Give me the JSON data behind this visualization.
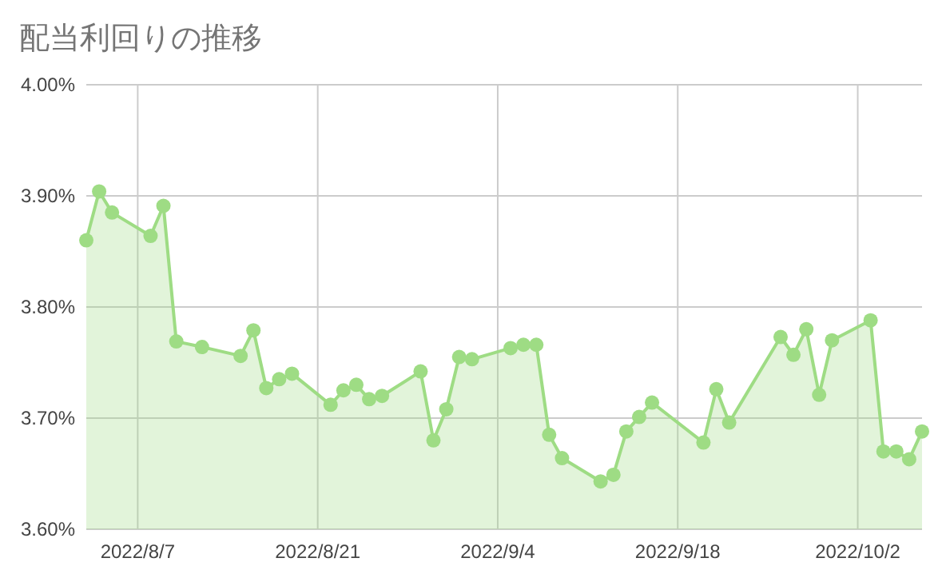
{
  "chart_data": {
    "type": "area",
    "title": "配当利回りの推移",
    "x": [
      "2022-08-03",
      "2022-08-04",
      "2022-08-05",
      "2022-08-08",
      "2022-08-09",
      "2022-08-10",
      "2022-08-12",
      "2022-08-15",
      "2022-08-16",
      "2022-08-17",
      "2022-08-18",
      "2022-08-19",
      "2022-08-22",
      "2022-08-23",
      "2022-08-24",
      "2022-08-25",
      "2022-08-26",
      "2022-08-29",
      "2022-08-30",
      "2022-08-31",
      "2022-09-01",
      "2022-09-02",
      "2022-09-05",
      "2022-09-06",
      "2022-09-07",
      "2022-09-08",
      "2022-09-09",
      "2022-09-12",
      "2022-09-13",
      "2022-09-14",
      "2022-09-15",
      "2022-09-16",
      "2022-09-20",
      "2022-09-21",
      "2022-09-22",
      "2022-09-26",
      "2022-09-27",
      "2022-09-28",
      "2022-09-29",
      "2022-09-30",
      "2022-10-03",
      "2022-10-04",
      "2022-10-05",
      "2022-10-06",
      "2022-10-07"
    ],
    "series": [
      {
        "color": "#9edc84",
        "values": [
          3.86,
          3.904,
          3.885,
          3.864,
          3.891,
          3.769,
          3.764,
          3.756,
          3.779,
          3.727,
          3.735,
          3.74,
          3.712,
          3.725,
          3.73,
          3.717,
          3.72,
          3.742,
          3.68,
          3.708,
          3.755,
          3.753,
          3.763,
          3.766,
          3.766,
          3.685,
          3.664,
          3.643,
          3.649,
          3.688,
          3.701,
          3.714,
          3.678,
          3.726,
          3.696,
          3.773,
          3.757,
          3.78,
          3.721,
          3.77,
          3.788,
          3.67,
          3.67,
          3.663,
          3.688
        ]
      }
    ],
    "xlim": [
      "2022-08-03",
      "2022-10-07"
    ],
    "xticks": [
      {
        "value": "2022-08-07",
        "label": "2022/8/7"
      },
      {
        "value": "2022-08-21",
        "label": "2022/8/21"
      },
      {
        "value": "2022-09-04",
        "label": "2022/9/4"
      },
      {
        "value": "2022-09-18",
        "label": "2022/9/18"
      },
      {
        "value": "2022-10-02",
        "label": "2022/10/2"
      }
    ],
    "ylim": [
      3.6,
      4.0
    ],
    "yticks": [
      {
        "value": 3.6,
        "label": "3.60%"
      },
      {
        "value": 3.7,
        "label": "3.70%"
      },
      {
        "value": 3.8,
        "label": "3.80%"
      },
      {
        "value": 3.9,
        "label": "3.90%"
      },
      {
        "value": 4.0,
        "label": "4.00%"
      }
    ],
    "grid": true,
    "marker": "circle"
  }
}
